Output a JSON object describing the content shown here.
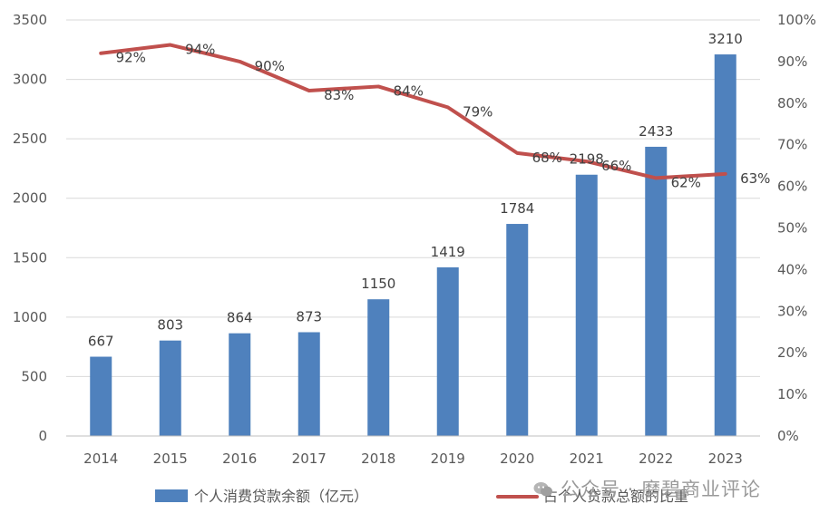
{
  "chart_data": {
    "type": "bar+line",
    "categories": [
      "2014",
      "2015",
      "2016",
      "2017",
      "2018",
      "2019",
      "2020",
      "2021",
      "2022",
      "2023"
    ],
    "series": [
      {
        "name": "个人消费贷款余额（亿元）",
        "type": "bar",
        "axis": "left",
        "color": "#4f81bd",
        "values": [
          667,
          803,
          864,
          873,
          1150,
          1419,
          1784,
          2198,
          2433,
          3210
        ],
        "labels": [
          "667",
          "803",
          "864",
          "873",
          "1150",
          "1419",
          "1784",
          "2198",
          "2433",
          "3210"
        ]
      },
      {
        "name": "占个人贷款总额的比重",
        "type": "line",
        "axis": "right",
        "color": "#c0504d",
        "values": [
          92,
          94,
          90,
          83,
          84,
          79,
          68,
          66,
          62,
          63
        ],
        "labels": [
          "92%",
          "94%",
          "90%",
          "83%",
          "84%",
          "79%",
          "68%",
          "66%",
          "62%",
          "63%"
        ]
      }
    ],
    "y_left": {
      "min": 0,
      "max": 3500,
      "step": 500,
      "ticks": [
        "0",
        "500",
        "1000",
        "1500",
        "2000",
        "2500",
        "3000",
        "3500"
      ]
    },
    "y_right": {
      "min": 0,
      "max": 100,
      "step": 10,
      "ticks": [
        "0%",
        "10%",
        "20%",
        "30%",
        "40%",
        "50%",
        "60%",
        "70%",
        "80%",
        "90%",
        "100%"
      ]
    },
    "grid": true,
    "legend_position": "bottom"
  },
  "watermark": {
    "text": "公众号 · 磨碧商业评论",
    "icon": "wechat-icon"
  }
}
